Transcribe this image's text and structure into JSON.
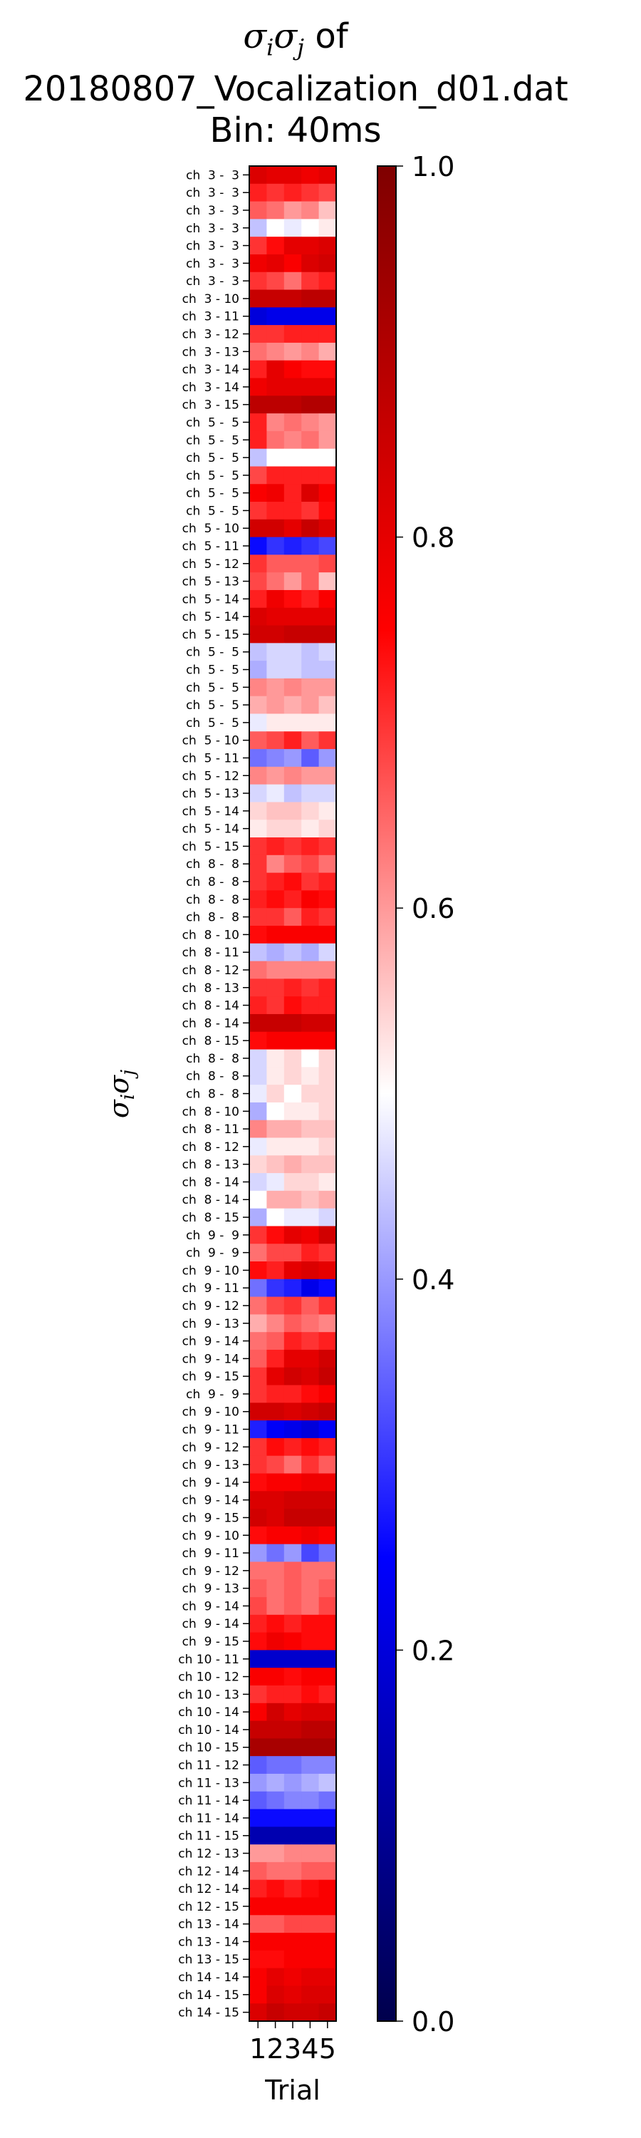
{
  "title": {
    "line1_suffix": " of",
    "line2": "20180807_Vocalization_d01.dat",
    "line3": "Bin: 40ms"
  },
  "chart_data": {
    "type": "heatmap",
    "ylabel_text": "σiσj",
    "xlabel": "Trial",
    "x": [
      "1",
      "2",
      "3",
      "4",
      "5"
    ],
    "colorbar": {
      "min": 0.0,
      "max": 1.0,
      "ticks": [
        0.0,
        0.2,
        0.4,
        0.6,
        0.8,
        1.0
      ],
      "tick_labels": [
        "0.0",
        "0.2",
        "0.4",
        "0.6",
        "0.8",
        "1.0"
      ],
      "colormap": "seismic",
      "stops": [
        "#00004c",
        "#0000ff",
        "#ffffff",
        "#ff0000",
        "#7f0000"
      ]
    },
    "rows": [
      {
        "label": "ch  3 -  3",
        "values": [
          0.82,
          0.8,
          0.8,
          0.78,
          0.8
        ]
      },
      {
        "label": "ch  3 -  3",
        "values": [
          0.72,
          0.7,
          0.72,
          0.7,
          0.68
        ]
      },
      {
        "label": "ch  3 -  3",
        "values": [
          0.66,
          0.64,
          0.6,
          0.62,
          0.56
        ]
      },
      {
        "label": "ch  3 -  3",
        "values": [
          0.44,
          0.5,
          0.48,
          0.5,
          0.52
        ]
      },
      {
        "label": "ch  3 -  3",
        "values": [
          0.7,
          0.74,
          0.8,
          0.8,
          0.82
        ]
      },
      {
        "label": "ch  3 -  3",
        "values": [
          0.78,
          0.8,
          0.76,
          0.82,
          0.84
        ]
      },
      {
        "label": "ch  3 -  3",
        "values": [
          0.7,
          0.68,
          0.64,
          0.7,
          0.72
        ]
      },
      {
        "label": "ch  3 - 10",
        "values": [
          0.86,
          0.86,
          0.86,
          0.88,
          0.88
        ]
      },
      {
        "label": "ch  3 - 11",
        "values": [
          0.2,
          0.22,
          0.22,
          0.22,
          0.22
        ]
      },
      {
        "label": "ch  3 - 12",
        "values": [
          0.7,
          0.7,
          0.72,
          0.72,
          0.72
        ]
      },
      {
        "label": "ch  3 - 13",
        "values": [
          0.64,
          0.62,
          0.6,
          0.62,
          0.58
        ]
      },
      {
        "label": "ch  3 - 14",
        "values": [
          0.72,
          0.8,
          0.76,
          0.74,
          0.74
        ]
      },
      {
        "label": "ch  3 - 14",
        "values": [
          0.78,
          0.8,
          0.8,
          0.8,
          0.8
        ]
      },
      {
        "label": "ch  3 - 15",
        "values": [
          0.88,
          0.88,
          0.88,
          0.9,
          0.9
        ]
      },
      {
        "label": "ch  5 -  5",
        "values": [
          0.72,
          0.62,
          0.64,
          0.62,
          0.6
        ]
      },
      {
        "label": "ch  5 -  5",
        "values": [
          0.72,
          0.64,
          0.62,
          0.64,
          0.6
        ]
      },
      {
        "label": "ch  5 -  5",
        "values": [
          0.44,
          0.5,
          0.5,
          0.5,
          0.5
        ]
      },
      {
        "label": "ch  5 -  5",
        "values": [
          0.68,
          0.72,
          0.72,
          0.72,
          0.72
        ]
      },
      {
        "label": "ch  5 -  5",
        "values": [
          0.76,
          0.78,
          0.72,
          0.82,
          0.76
        ]
      },
      {
        "label": "ch  5 -  5",
        "values": [
          0.7,
          0.72,
          0.72,
          0.7,
          0.74
        ]
      },
      {
        "label": "ch  5 - 10",
        "values": [
          0.84,
          0.84,
          0.8,
          0.86,
          0.82
        ]
      },
      {
        "label": "ch  5 - 11",
        "values": [
          0.26,
          0.3,
          0.28,
          0.3,
          0.32
        ]
      },
      {
        "label": "ch  5 - 12",
        "values": [
          0.7,
          0.66,
          0.66,
          0.66,
          0.68
        ]
      },
      {
        "label": "ch  5 - 13",
        "values": [
          0.68,
          0.64,
          0.6,
          0.66,
          0.56
        ]
      },
      {
        "label": "ch  5 - 14",
        "values": [
          0.72,
          0.78,
          0.74,
          0.72,
          0.76
        ]
      },
      {
        "label": "ch  5 - 14",
        "values": [
          0.82,
          0.8,
          0.8,
          0.8,
          0.8
        ]
      },
      {
        "label": "ch  5 - 15",
        "values": [
          0.84,
          0.84,
          0.86,
          0.86,
          0.86
        ]
      },
      {
        "label": "ch  5 -  5",
        "values": [
          0.44,
          0.46,
          0.46,
          0.44,
          0.46
        ]
      },
      {
        "label": "ch  5 -  5",
        "values": [
          0.42,
          0.46,
          0.46,
          0.44,
          0.44
        ]
      },
      {
        "label": "ch  5 -  5",
        "values": [
          0.62,
          0.6,
          0.62,
          0.6,
          0.6
        ]
      },
      {
        "label": "ch  5 -  5",
        "values": [
          0.58,
          0.6,
          0.58,
          0.6,
          0.56
        ]
      },
      {
        "label": "ch  5 -  5",
        "values": [
          0.48,
          0.52,
          0.52,
          0.52,
          0.52
        ]
      },
      {
        "label": "ch  5 - 10",
        "values": [
          0.66,
          0.68,
          0.72,
          0.66,
          0.7
        ]
      },
      {
        "label": "ch  5 - 11",
        "values": [
          0.36,
          0.38,
          0.4,
          0.34,
          0.4
        ]
      },
      {
        "label": "ch  5 - 12",
        "values": [
          0.62,
          0.6,
          0.62,
          0.6,
          0.6
        ]
      },
      {
        "label": "ch  5 - 13",
        "values": [
          0.46,
          0.48,
          0.44,
          0.46,
          0.46
        ]
      },
      {
        "label": "ch  5 - 14",
        "values": [
          0.54,
          0.56,
          0.56,
          0.54,
          0.52
        ]
      },
      {
        "label": "ch  5 - 14",
        "values": [
          0.52,
          0.54,
          0.54,
          0.52,
          0.54
        ]
      },
      {
        "label": "ch  5 - 15",
        "values": [
          0.7,
          0.72,
          0.7,
          0.72,
          0.7
        ]
      },
      {
        "label": "ch  8 -  8",
        "values": [
          0.7,
          0.62,
          0.66,
          0.68,
          0.64
        ]
      },
      {
        "label": "ch  8 -  8",
        "values": [
          0.7,
          0.72,
          0.74,
          0.7,
          0.72
        ]
      },
      {
        "label": "ch  8 -  8",
        "values": [
          0.72,
          0.74,
          0.72,
          0.76,
          0.74
        ]
      },
      {
        "label": "ch  8 -  8",
        "values": [
          0.7,
          0.7,
          0.66,
          0.72,
          0.7
        ]
      },
      {
        "label": "ch  8 - 10",
        "values": [
          0.74,
          0.76,
          0.76,
          0.76,
          0.76
        ]
      },
      {
        "label": "ch  8 - 11",
        "values": [
          0.44,
          0.42,
          0.44,
          0.42,
          0.46
        ]
      },
      {
        "label": "ch  8 - 12",
        "values": [
          0.64,
          0.62,
          0.62,
          0.62,
          0.62
        ]
      },
      {
        "label": "ch  8 - 13",
        "values": [
          0.7,
          0.7,
          0.72,
          0.7,
          0.72
        ]
      },
      {
        "label": "ch  8 - 14",
        "values": [
          0.72,
          0.7,
          0.74,
          0.72,
          0.72
        ]
      },
      {
        "label": "ch  8 - 14",
        "values": [
          0.86,
          0.86,
          0.86,
          0.84,
          0.84
        ]
      },
      {
        "label": "ch  8 - 15",
        "values": [
          0.74,
          0.76,
          0.76,
          0.76,
          0.76
        ]
      },
      {
        "label": "ch  8 -  8",
        "values": [
          0.46,
          0.52,
          0.54,
          0.5,
          0.54
        ]
      },
      {
        "label": "ch  8 -  8",
        "values": [
          0.46,
          0.52,
          0.54,
          0.52,
          0.54
        ]
      },
      {
        "label": "ch  8 -  8",
        "values": [
          0.48,
          0.54,
          0.5,
          0.54,
          0.54
        ]
      },
      {
        "label": "ch  8 - 10",
        "values": [
          0.42,
          0.5,
          0.52,
          0.52,
          0.54
        ]
      },
      {
        "label": "ch  8 - 11",
        "values": [
          0.62,
          0.58,
          0.58,
          0.56,
          0.56
        ]
      },
      {
        "label": "ch  8 - 12",
        "values": [
          0.48,
          0.52,
          0.52,
          0.52,
          0.54
        ]
      },
      {
        "label": "ch  8 - 13",
        "values": [
          0.54,
          0.56,
          0.58,
          0.56,
          0.56
        ]
      },
      {
        "label": "ch  8 - 14",
        "values": [
          0.46,
          0.48,
          0.54,
          0.54,
          0.52
        ]
      },
      {
        "label": "ch  8 - 14",
        "values": [
          0.5,
          0.58,
          0.58,
          0.56,
          0.58
        ]
      },
      {
        "label": "ch  8 - 15",
        "values": [
          0.42,
          0.5,
          0.48,
          0.48,
          0.46
        ]
      },
      {
        "label": "ch  9 -  9",
        "values": [
          0.7,
          0.74,
          0.8,
          0.78,
          0.84
        ]
      },
      {
        "label": "ch  9 -  9",
        "values": [
          0.64,
          0.68,
          0.68,
          0.72,
          0.7
        ]
      },
      {
        "label": "ch  9 - 10",
        "values": [
          0.74,
          0.72,
          0.8,
          0.82,
          0.8
        ]
      },
      {
        "label": "ch  9 - 11",
        "values": [
          0.36,
          0.3,
          0.28,
          0.22,
          0.26
        ]
      },
      {
        "label": "ch  9 - 12",
        "values": [
          0.64,
          0.68,
          0.7,
          0.66,
          0.7
        ]
      },
      {
        "label": "ch  9 - 13",
        "values": [
          0.58,
          0.62,
          0.66,
          0.64,
          0.62
        ]
      },
      {
        "label": "ch  9 - 14",
        "values": [
          0.64,
          0.66,
          0.72,
          0.7,
          0.72
        ]
      },
      {
        "label": "ch  9 - 14",
        "values": [
          0.66,
          0.72,
          0.8,
          0.8,
          0.84
        ]
      },
      {
        "label": "ch  9 - 15",
        "values": [
          0.7,
          0.8,
          0.84,
          0.82,
          0.86
        ]
      },
      {
        "label": "ch  9 -  9",
        "values": [
          0.7,
          0.72,
          0.72,
          0.74,
          0.76
        ]
      },
      {
        "label": "ch  9 - 10",
        "values": [
          0.84,
          0.84,
          0.82,
          0.84,
          0.86
        ]
      },
      {
        "label": "ch  9 - 11",
        "values": [
          0.28,
          0.24,
          0.22,
          0.2,
          0.24
        ]
      },
      {
        "label": "ch  9 - 12",
        "values": [
          0.7,
          0.74,
          0.72,
          0.74,
          0.72
        ]
      },
      {
        "label": "ch  9 - 13",
        "values": [
          0.7,
          0.68,
          0.64,
          0.7,
          0.66
        ]
      },
      {
        "label": "ch  9 - 14",
        "values": [
          0.74,
          0.76,
          0.76,
          0.78,
          0.78
        ]
      },
      {
        "label": "ch  9 - 14",
        "values": [
          0.82,
          0.82,
          0.84,
          0.84,
          0.84
        ]
      },
      {
        "label": "ch  9 - 15",
        "values": [
          0.84,
          0.82,
          0.86,
          0.86,
          0.86
        ]
      },
      {
        "label": "ch  9 - 10",
        "values": [
          0.74,
          0.76,
          0.76,
          0.78,
          0.76
        ]
      },
      {
        "label": "ch  9 - 11",
        "values": [
          0.4,
          0.36,
          0.4,
          0.32,
          0.36
        ]
      },
      {
        "label": "ch  9 - 12",
        "values": [
          0.64,
          0.64,
          0.66,
          0.64,
          0.64
        ]
      },
      {
        "label": "ch  9 - 13",
        "values": [
          0.66,
          0.64,
          0.66,
          0.64,
          0.66
        ]
      },
      {
        "label": "ch  9 - 14",
        "values": [
          0.68,
          0.64,
          0.66,
          0.64,
          0.68
        ]
      },
      {
        "label": "ch  9 - 14",
        "values": [
          0.72,
          0.74,
          0.72,
          0.74,
          0.74
        ]
      },
      {
        "label": "ch  9 - 15",
        "values": [
          0.74,
          0.78,
          0.76,
          0.74,
          0.74
        ]
      },
      {
        "label": "ch 10 - 11",
        "values": [
          0.18,
          0.18,
          0.18,
          0.18,
          0.18
        ]
      },
      {
        "label": "ch 10 - 12",
        "values": [
          0.76,
          0.76,
          0.74,
          0.76,
          0.76
        ]
      },
      {
        "label": "ch 10 - 13",
        "values": [
          0.7,
          0.72,
          0.72,
          0.74,
          0.72
        ]
      },
      {
        "label": "ch 10 - 14",
        "values": [
          0.76,
          0.84,
          0.8,
          0.82,
          0.82
        ]
      },
      {
        "label": "ch 10 - 14",
        "values": [
          0.86,
          0.86,
          0.86,
          0.88,
          0.88
        ]
      },
      {
        "label": "ch 10 - 15",
        "values": [
          0.92,
          0.92,
          0.92,
          0.92,
          0.92
        ]
      },
      {
        "label": "ch 11 - 12",
        "values": [
          0.34,
          0.36,
          0.36,
          0.38,
          0.38
        ]
      },
      {
        "label": "ch 11 - 13",
        "values": [
          0.4,
          0.42,
          0.4,
          0.42,
          0.44
        ]
      },
      {
        "label": "ch 11 - 14",
        "values": [
          0.34,
          0.36,
          0.38,
          0.38,
          0.36
        ]
      },
      {
        "label": "ch 11 - 14",
        "values": [
          0.26,
          0.26,
          0.26,
          0.26,
          0.26
        ]
      },
      {
        "label": "ch 11 - 15",
        "values": [
          0.14,
          0.14,
          0.14,
          0.14,
          0.14
        ]
      },
      {
        "label": "ch 12 - 13",
        "values": [
          0.6,
          0.6,
          0.62,
          0.62,
          0.62
        ]
      },
      {
        "label": "ch 12 - 14",
        "values": [
          0.66,
          0.64,
          0.64,
          0.66,
          0.66
        ]
      },
      {
        "label": "ch 12 - 14",
        "values": [
          0.72,
          0.74,
          0.72,
          0.74,
          0.76
        ]
      },
      {
        "label": "ch 12 - 15",
        "values": [
          0.76,
          0.76,
          0.76,
          0.76,
          0.76
        ]
      },
      {
        "label": "ch 13 - 14",
        "values": [
          0.66,
          0.66,
          0.68,
          0.68,
          0.68
        ]
      },
      {
        "label": "ch 13 - 14",
        "values": [
          0.76,
          0.76,
          0.76,
          0.76,
          0.76
        ]
      },
      {
        "label": "ch 13 - 15",
        "values": [
          0.74,
          0.74,
          0.76,
          0.76,
          0.76
        ]
      },
      {
        "label": "ch 14 - 14",
        "values": [
          0.76,
          0.8,
          0.78,
          0.8,
          0.8
        ]
      },
      {
        "label": "ch 14 - 15",
        "values": [
          0.76,
          0.82,
          0.8,
          0.82,
          0.82
        ]
      },
      {
        "label": "ch 14 - 15",
        "values": [
          0.82,
          0.86,
          0.84,
          0.84,
          0.86
        ]
      }
    ]
  }
}
